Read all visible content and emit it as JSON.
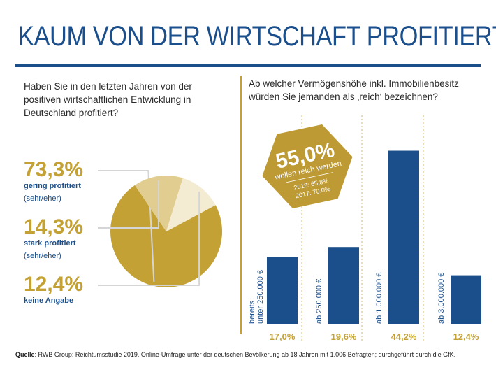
{
  "title": "KAUM VON DER WIRTSCHAFT PROFITIERT?",
  "colors": {
    "navy": "#1b4f8c",
    "gold": "#c3a135",
    "gold_light": "#e1cd8f",
    "cream": "#f4ebd3",
    "leader": "#d5d5d5",
    "dotted": "#d4b868"
  },
  "left": {
    "question": "Haben Sie in den letzten Jahren von der positiven wirtschaftlichen Entwicklung in Deutschland profitiert?"
  },
  "right": {
    "question": "Ab welcher Vermögenshöhe inkl. Immobilienbesitz würden Sie jemanden als ‚reich‘ bezeichnen?"
  },
  "badge": {
    "value": "55,0%",
    "label": "wollen reich werden",
    "line1": "2018: 65,8%",
    "line2": "2017: 70,0%"
  },
  "footer": {
    "source_label": "Quelle",
    "source_text": ": RWB Group: Reichtumsstudie 2019. Online-Umfrage unter der deutschen Bevölkerung ab 18 Jahren mit 1.006 Befragten; durchgeführt durch die GfK."
  },
  "chart_data": [
    {
      "type": "pie",
      "slices": [
        {
          "value_label": "73,3%",
          "value": 73.3,
          "label": "gering profitiert",
          "sublabel": "(sehr/eher)",
          "color": "#c3a135"
        },
        {
          "value_label": "14,3%",
          "value": 14.3,
          "label": "stark profitiert",
          "sublabel": "(sehr/eher)",
          "color": "#e1cd8f"
        },
        {
          "value_label": "12,4%",
          "value": 12.4,
          "label": "keine Angabe",
          "sublabel": "",
          "color": "#f4ebd3"
        }
      ]
    },
    {
      "type": "bar",
      "categories": [
        [
          "bereits",
          "unter 250.000 €"
        ],
        [
          "ab 250.000 €"
        ],
        [
          "ab 1.000.000 €"
        ],
        [
          "ab 3.000.000 €"
        ]
      ],
      "values": [
        17.0,
        19.6,
        44.2,
        12.4
      ],
      "value_labels": [
        "17,0%",
        "19,6%",
        "44,2%",
        "12,4%"
      ],
      "ylim": [
        0,
        50
      ],
      "color": "#1b4f8c"
    }
  ]
}
